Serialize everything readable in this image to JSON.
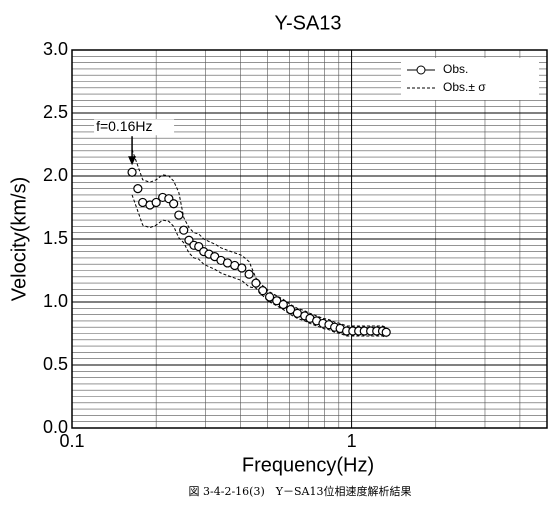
{
  "chart_data": {
    "type": "scatter",
    "title": "Y-SA13",
    "x_label": "Frequency(Hz)",
    "y_label": "Velocity(km/s)",
    "caption": "図 3-4-2-16(3)　Y－SA13位相速度解析結果",
    "annotation": "f=0.16Hz",
    "x_log": true,
    "grid": true,
    "legend": "upper right",
    "xlim": [
      0.1,
      5
    ],
    "xticks": [
      0.1,
      1
    ],
    "x_minor_ticks": [
      0.2,
      0.3,
      0.4,
      0.5,
      0.6,
      0.7,
      0.8,
      0.9,
      2,
      3,
      4
    ],
    "ylim": [
      0,
      3
    ],
    "yticks": [
      {
        "value": 0,
        "label": "0.0"
      },
      0.5,
      {
        "value": 1,
        "label": "1.0"
      },
      1.5,
      {
        "value": 2,
        "label": "2.0"
      },
      2.5,
      {
        "value": 3,
        "label": "3.0"
      }
    ],
    "y_minor_ticks": [
      0.05,
      0.1,
      0.15,
      0.2,
      0.25,
      0.3,
      0.35,
      0.4,
      0.45,
      0.55,
      0.6,
      0.65,
      0.7,
      0.75,
      0.8,
      0.85,
      0.9,
      0.95,
      1.05,
      1.1,
      1.15,
      1.2,
      1.25,
      1.3,
      1.35,
      1.4,
      1.45,
      1.55,
      1.6,
      1.65,
      1.7,
      1.75,
      1.8,
      1.85,
      1.9,
      1.95,
      2.05,
      2.1,
      2.15,
      2.2,
      2.25,
      2.3,
      2.35,
      2.4,
      2.45,
      2.55,
      2.6,
      2.65,
      2.7,
      2.75,
      2.8,
      2.85,
      2.9,
      2.95
    ],
    "x": [
      0.164,
      0.172,
      0.179,
      0.19,
      0.2,
      0.211,
      0.222,
      0.231,
      0.241,
      0.251,
      0.262,
      0.273,
      0.284,
      0.296,
      0.309,
      0.324,
      0.341,
      0.36,
      0.382,
      0.405,
      0.43,
      0.455,
      0.481,
      0.509,
      0.54,
      0.57,
      0.605,
      0.64,
      0.68,
      0.71,
      0.75,
      0.79,
      0.83,
      0.87,
      0.91,
      0.96,
      1.01,
      1.06,
      1.11,
      1.17,
      1.23,
      1.29,
      1.33
    ],
    "series": [
      {
        "name": "Obs.",
        "color": "#000000",
        "values": [
          2.03,
          1.9,
          1.79,
          1.77,
          1.79,
          1.83,
          1.82,
          1.78,
          1.69,
          1.57,
          1.49,
          1.45,
          1.44,
          1.4,
          1.38,
          1.36,
          1.33,
          1.31,
          1.29,
          1.27,
          1.22,
          1.15,
          1.09,
          1.04,
          1.01,
          0.98,
          0.94,
          0.91,
          0.89,
          0.87,
          0.85,
          0.83,
          0.82,
          0.8,
          0.79,
          0.77,
          0.77,
          0.77,
          0.77,
          0.77,
          0.77,
          0.77,
          0.76
        ]
      },
      {
        "name": "Obs.± σ",
        "color": "#000000",
        "upper": [
          2.21,
          2.08,
          1.97,
          1.95,
          1.97,
          2.01,
          2.0,
          1.96,
          1.87,
          1.67,
          1.59,
          1.55,
          1.54,
          1.5,
          1.48,
          1.46,
          1.43,
          1.41,
          1.39,
          1.37,
          1.32,
          1.19,
          1.13,
          1.08,
          1.05,
          1.02,
          0.98,
          0.95,
          0.93,
          0.91,
          0.89,
          0.87,
          0.86,
          0.84,
          0.83,
          0.81,
          0.81,
          0.81,
          0.81,
          0.81,
          0.81,
          0.81,
          0.8
        ],
        "lower": [
          1.85,
          1.72,
          1.61,
          1.59,
          1.61,
          1.65,
          1.64,
          1.6,
          1.51,
          1.47,
          1.39,
          1.35,
          1.34,
          1.3,
          1.28,
          1.26,
          1.23,
          1.21,
          1.19,
          1.17,
          1.12,
          1.11,
          1.05,
          1.0,
          0.97,
          0.94,
          0.9,
          0.87,
          0.85,
          0.83,
          0.81,
          0.79,
          0.78,
          0.76,
          0.75,
          0.73,
          0.73,
          0.73,
          0.73,
          0.73,
          0.73,
          0.73,
          0.72
        ]
      }
    ]
  }
}
